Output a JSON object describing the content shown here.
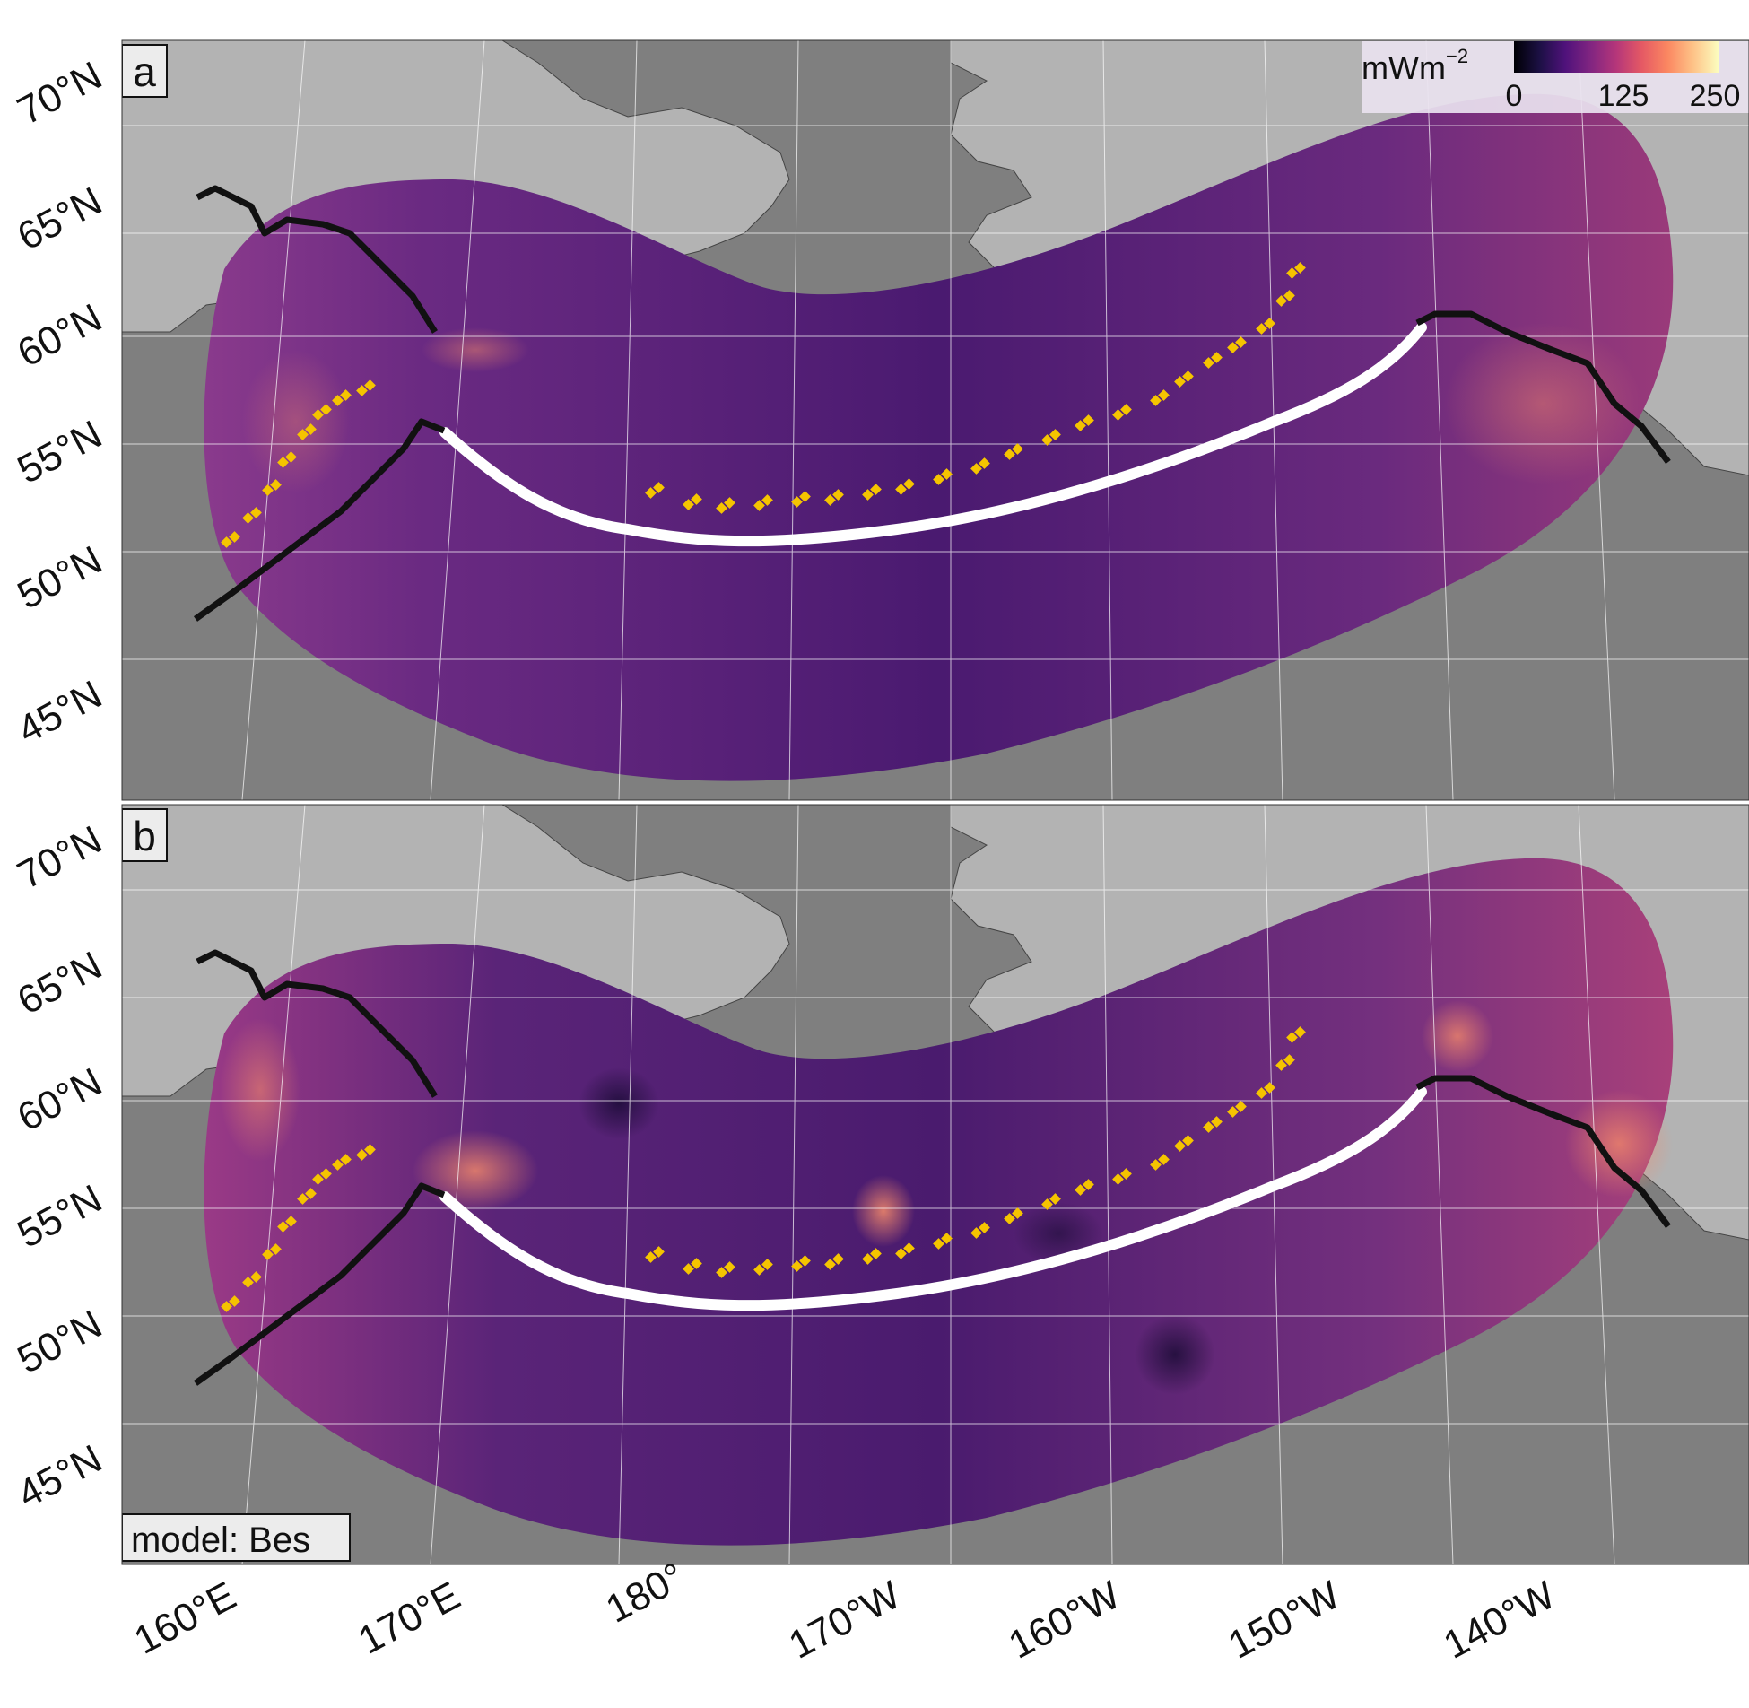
{
  "panels": [
    {
      "label": "a",
      "annotation": ""
    },
    {
      "label": "b",
      "annotation": "model: Bes"
    }
  ],
  "lat_labels": [
    "70°N",
    "65°N",
    "60°N",
    "55°N",
    "50°N",
    "45°N"
  ],
  "lon_labels": [
    "160°E",
    "170°E",
    "180°",
    "170°W",
    "160°W",
    "150°W",
    "140°W"
  ],
  "colorbar": {
    "unit_base": "mWm",
    "unit_exp": "−2",
    "ticks": [
      "0",
      "125",
      "250"
    ],
    "palette": [
      "#000004",
      "#1c1044",
      "#4f127b",
      "#812581",
      "#b5367a",
      "#e55964",
      "#fb8761",
      "#fec287",
      "#fcfdbf"
    ]
  },
  "colors": {
    "ocean": "#7f7f7f",
    "land": "#b3b3b3",
    "grid": "#ffffff",
    "arc_points": "#f5c400",
    "trench_white": "#ffffff",
    "plate_boundary": "#111111"
  }
}
